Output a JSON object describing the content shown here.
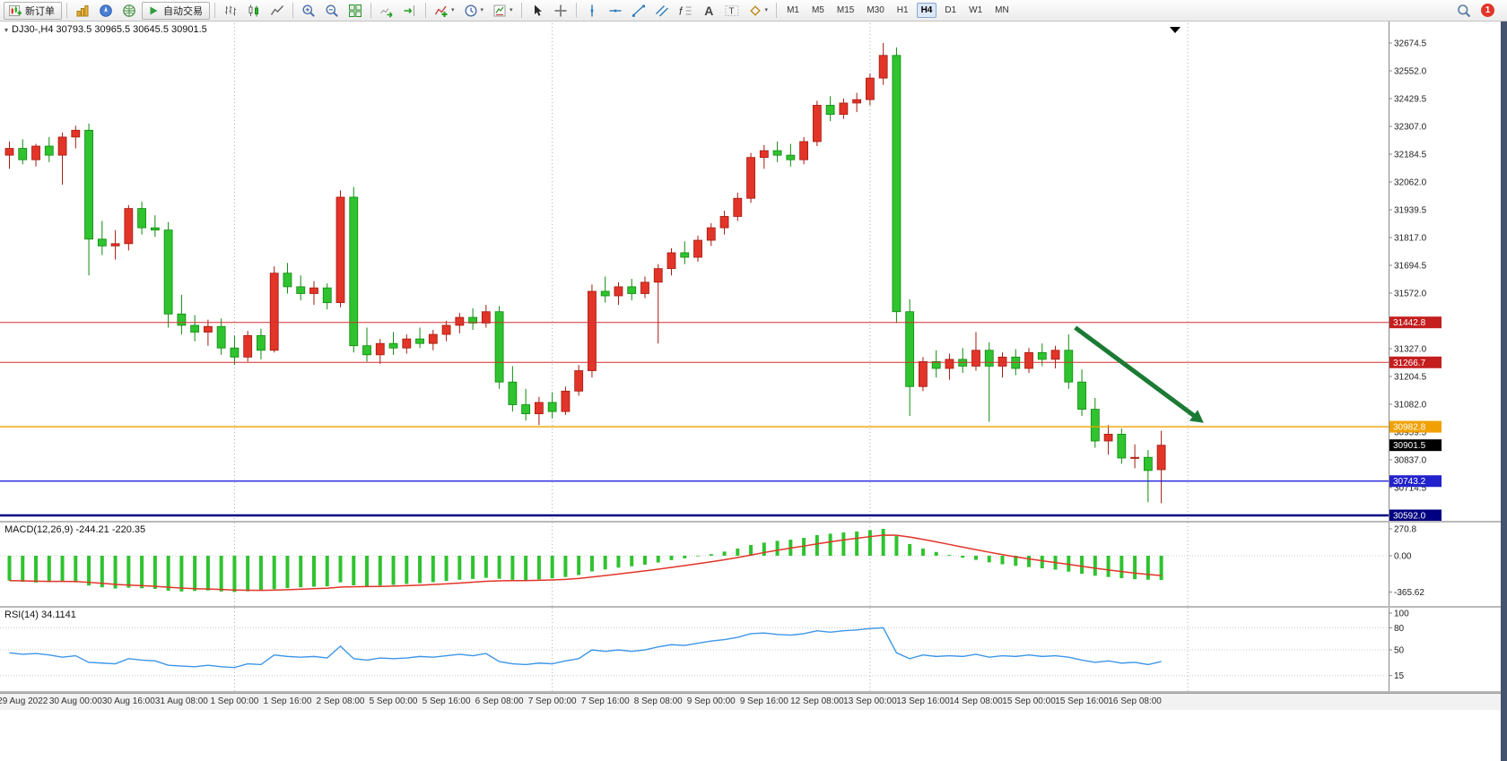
{
  "toolbar": {
    "groups": [
      {
        "items": [
          {
            "name": "new-order-button",
            "icon": "new-order-icon",
            "label": "新订单",
            "framed": true
          }
        ]
      },
      {
        "items": [
          {
            "name": "market-watch-button",
            "icon": "market-watch-icon"
          },
          {
            "name": "navigator-button",
            "icon": "navigator-icon"
          },
          {
            "name": "terminal-button",
            "icon": "terminal-icon"
          },
          {
            "name": "autotrading-button",
            "icon": "autotrading-icon",
            "label": "自动交易",
            "framed": true
          }
        ]
      },
      {
        "items": [
          {
            "name": "bar-chart-button",
            "icon": "bar-chart-icon"
          },
          {
            "name": "candlestick-chart-button",
            "icon": "candlestick-icon"
          },
          {
            "name": "line-chart-button",
            "icon": "line-chart-icon"
          }
        ]
      },
      {
        "items": [
          {
            "name": "zoom-in-button",
            "icon": "zoom-in-icon"
          },
          {
            "name": "zoom-out-button",
            "icon": "zoom-out-icon"
          },
          {
            "name": "tile-windows-button",
            "icon": "tile-windows-icon"
          }
        ]
      },
      {
        "items": [
          {
            "name": "auto-scroll-button",
            "icon": "auto-scroll-icon"
          },
          {
            "name": "chart-shift-button",
            "icon": "chart-shift-icon"
          }
        ]
      },
      {
        "items": [
          {
            "name": "indicators-button",
            "icon": "indicators-icon",
            "caret": true
          },
          {
            "name": "periods-button",
            "icon": "clock-icon",
            "caret": true
          },
          {
            "name": "templates-button",
            "icon": "template-icon",
            "caret": true
          }
        ]
      },
      {
        "items": [
          {
            "name": "cursor-button",
            "icon": "cursor-icon"
          },
          {
            "name": "crosshair-button",
            "icon": "crosshair-icon"
          }
        ]
      },
      {
        "items": [
          {
            "name": "vertical-line-button",
            "icon": "vertical-line-icon"
          },
          {
            "name": "horizontal-line-button",
            "icon": "horizontal-line-icon"
          },
          {
            "name": "trendline-button",
            "icon": "trendline-icon"
          },
          {
            "name": "channel-button",
            "icon": "channel-icon"
          },
          {
            "name": "fibonacci-button",
            "icon": "fibonacci-icon"
          },
          {
            "name": "text-button",
            "icon": "text-icon"
          },
          {
            "name": "label-button",
            "icon": "label-icon"
          },
          {
            "name": "shapes-button",
            "icon": "shapes-icon",
            "caret": true
          }
        ]
      }
    ],
    "timeframes": [
      "M1",
      "M5",
      "M15",
      "M30",
      "H1",
      "H4",
      "D1",
      "W1",
      "MN"
    ],
    "active_timeframe": "H4",
    "notification_badge": "1"
  },
  "chart": {
    "header": "DJ30-,H4 30793.5 30965.5 30645.5 30901.5",
    "symbol": "DJ30-",
    "timeframe": "H4",
    "open": 30793.5,
    "high": 30965.5,
    "low": 30645.5,
    "close": 30901.5
  },
  "chart_data": [
    {
      "type": "candlestick",
      "title": "DJ30-,H4",
      "up_color": "#e23428",
      "up_stroke": "#a31b10",
      "down_color": "#2fc32f",
      "down_stroke": "#0e8a0e",
      "y_range": {
        "top": 32674.5,
        "bottom": 30592.0
      },
      "y_tick_labels": [
        32674.5,
        32552.0,
        32429.5,
        32307.0,
        32184.5,
        32062.0,
        31939.5,
        31817.0,
        31694.5,
        31572.0,
        31449.5,
        31327.0,
        31204.5,
        31082.0,
        30959.5,
        30837.0,
        30714.5,
        30592.0
      ],
      "x_labels": [
        "29 Aug 2022",
        "30 Aug 00:00",
        "30 Aug 16:00",
        "31 Aug 08:00",
        "1 Sep 00:00",
        "1 Sep 16:00",
        "2 Sep 08:00",
        "5 Sep 00:00",
        "5 Sep 16:00",
        "6 Sep 08:00",
        "7 Sep 00:00",
        "7 Sep 16:00",
        "8 Sep 08:00",
        "9 Sep 00:00",
        "9 Sep 16:00",
        "12 Sep 08:00",
        "13 Sep 00:00",
        "13 Sep 16:00",
        "14 Sep 08:00",
        "15 Sep 00:00",
        "15 Sep 16:00",
        "16 Sep 08:00"
      ],
      "x_label_indices": [
        1,
        5,
        9,
        13,
        17,
        21,
        25,
        29,
        33,
        37,
        41,
        45,
        49,
        53,
        57,
        61,
        65,
        69,
        73,
        77,
        81,
        85
      ],
      "separators": [
        17,
        41,
        65,
        89
      ],
      "candles": [
        [
          32180,
          32240,
          32120,
          32210
        ],
        [
          32210,
          32250,
          32140,
          32160
        ],
        [
          32160,
          32230,
          32130,
          32220
        ],
        [
          32220,
          32260,
          32150,
          32180
        ],
        [
          32180,
          32280,
          32050,
          32260
        ],
        [
          32260,
          32310,
          32210,
          32290
        ],
        [
          32290,
          32320,
          31650,
          31810
        ],
        [
          31810,
          31890,
          31740,
          31780
        ],
        [
          31780,
          31850,
          31720,
          31790
        ],
        [
          31790,
          31960,
          31760,
          31945
        ],
        [
          31945,
          31975,
          31830,
          31860
        ],
        [
          31860,
          31915,
          31820,
          31850
        ],
        [
          31850,
          31885,
          31420,
          31480
        ],
        [
          31480,
          31565,
          31390,
          31430
        ],
        [
          31430,
          31475,
          31360,
          31400
        ],
        [
          31400,
          31455,
          31340,
          31425
        ],
        [
          31425,
          31460,
          31300,
          31330
        ],
        [
          31330,
          31385,
          31255,
          31290
        ],
        [
          31290,
          31405,
          31270,
          31385
        ],
        [
          31385,
          31415,
          31280,
          31320
        ],
        [
          31320,
          31690,
          31310,
          31660
        ],
        [
          31660,
          31705,
          31570,
          31600
        ],
        [
          31600,
          31650,
          31540,
          31570
        ],
        [
          31570,
          31625,
          31520,
          31595
        ],
        [
          31595,
          31615,
          31500,
          31530
        ],
        [
          31530,
          32025,
          31510,
          31995
        ],
        [
          31995,
          32040,
          31310,
          31340
        ],
        [
          31340,
          31420,
          31270,
          31300
        ],
        [
          31300,
          31370,
          31260,
          31350
        ],
        [
          31350,
          31400,
          31300,
          31330
        ],
        [
          31330,
          31390,
          31305,
          31370
        ],
        [
          31370,
          31420,
          31330,
          31350
        ],
        [
          31350,
          31410,
          31320,
          31390
        ],
        [
          31390,
          31450,
          31360,
          31430
        ],
        [
          31430,
          31485,
          31395,
          31465
        ],
        [
          31465,
          31505,
          31410,
          31440
        ],
        [
          31440,
          31520,
          31420,
          31490
        ],
        [
          31490,
          31515,
          31150,
          31180
        ],
        [
          31180,
          31250,
          31050,
          31080
        ],
        [
          31080,
          31150,
          31010,
          31040
        ],
        [
          31040,
          31115,
          30990,
          31090
        ],
        [
          31090,
          31135,
          31020,
          31050
        ],
        [
          31050,
          31160,
          31035,
          31140
        ],
        [
          31140,
          31255,
          31120,
          31230
        ],
        [
          31230,
          31610,
          31200,
          31580
        ],
        [
          31580,
          31645,
          31530,
          31560
        ],
        [
          31560,
          31620,
          31520,
          31600
        ],
        [
          31600,
          31635,
          31540,
          31570
        ],
        [
          31570,
          31645,
          31550,
          31620
        ],
        [
          31620,
          31700,
          31350,
          31680
        ],
        [
          31680,
          31770,
          31650,
          31750
        ],
        [
          31750,
          31800,
          31700,
          31730
        ],
        [
          31730,
          31825,
          31710,
          31805
        ],
        [
          31805,
          31880,
          31780,
          31860
        ],
        [
          31860,
          31935,
          31830,
          31910
        ],
        [
          31910,
          32015,
          31890,
          31990
        ],
        [
          31990,
          32190,
          31970,
          32170
        ],
        [
          32170,
          32225,
          32120,
          32200
        ],
        [
          32200,
          32240,
          32150,
          32180
        ],
        [
          32180,
          32230,
          32130,
          32160
        ],
        [
          32160,
          32260,
          32140,
          32240
        ],
        [
          32240,
          32420,
          32220,
          32400
        ],
        [
          32400,
          32440,
          32330,
          32360
        ],
        [
          32360,
          32430,
          32340,
          32410
        ],
        [
          32410,
          32455,
          32370,
          32425
        ],
        [
          32425,
          32540,
          32400,
          32520
        ],
        [
          32520,
          32674.5,
          32490,
          32620
        ],
        [
          32620,
          32655,
          31440,
          31490
        ],
        [
          31490,
          31545,
          31030,
          31160
        ],
        [
          31160,
          31290,
          31140,
          31270
        ],
        [
          31270,
          31320,
          31200,
          31240
        ],
        [
          31240,
          31305,
          31190,
          31280
        ],
        [
          31280,
          31330,
          31220,
          31250
        ],
        [
          31250,
          31400,
          31230,
          31320
        ],
        [
          31320,
          31355,
          31005,
          31250
        ],
        [
          31250,
          31310,
          31200,
          31290
        ],
        [
          31290,
          31325,
          31210,
          31240
        ],
        [
          31240,
          31330,
          31220,
          31310
        ],
        [
          31310,
          31350,
          31250,
          31280
        ],
        [
          31280,
          31340,
          31240,
          31320
        ],
        [
          31320,
          31390,
          31150,
          31180
        ],
        [
          31180,
          31235,
          31030,
          31060
        ],
        [
          31060,
          31110,
          30890,
          30920
        ],
        [
          30920,
          30990,
          30860,
          30950
        ],
        [
          30950,
          30975,
          30820,
          30845
        ],
        [
          30845,
          30905,
          30800,
          30848
        ],
        [
          30848,
          30880,
          30650,
          30790
        ],
        [
          30793.5,
          30965.5,
          30645.5,
          30901.5
        ]
      ],
      "hlines": [
        {
          "price": 31442.8,
          "color": "#d32f2f",
          "tag_bg": "#c41e1e",
          "width": 1
        },
        {
          "price": 31266.7,
          "color": "#d32f2f",
          "tag_bg": "#c41e1e",
          "width": 1
        },
        {
          "price": 30982.8,
          "color": "#f0a100",
          "tag_bg": "#f0a100",
          "width": 1.4
        },
        {
          "price": 30743.2,
          "color": "#2222dd",
          "tag_bg": "#2222cc",
          "width": 1.4
        },
        {
          "price": 30592.0,
          "color": "#000080",
          "tag_bg": "#000080",
          "width": 2.5
        }
      ],
      "current_price": 30901.5,
      "current_price_tag_bg": "#000000",
      "arrow_annotation": {
        "from_index": 80.5,
        "from_price": 31420,
        "to_index": 90.2,
        "to_price": 31000,
        "color": "#1b7a33"
      }
    },
    {
      "type": "macd-histogram",
      "label": "MACD(12,26,9) -244.21 -220.35",
      "histogram_color": "#2fc32f",
      "signal_color": "#e23428",
      "signal_ema_period": 9,
      "scale": [
        {
          "label": "270.8",
          "value": 270.8
        },
        {
          "label": "0.00",
          "value": 0
        },
        {
          "label": "-365.62",
          "value": -365.62
        }
      ],
      "values": [
        -250,
        -262,
        -270,
        -266,
        -258,
        -268,
        -300,
        -318,
        -330,
        -322,
        -328,
        -334,
        -352,
        -360,
        -355,
        -350,
        -360,
        -365.62,
        -358,
        -352,
        -336,
        -326,
        -318,
        -312,
        -308,
        -268,
        -298,
        -306,
        -300,
        -294,
        -284,
        -276,
        -266,
        -254,
        -242,
        -234,
        -222,
        -232,
        -242,
        -248,
        -238,
        -228,
        -214,
        -194,
        -158,
        -138,
        -120,
        -106,
        -90,
        -68,
        -44,
        -26,
        -6,
        16,
        42,
        72,
        108,
        132,
        150,
        162,
        180,
        208,
        222,
        234,
        244,
        258,
        270.8,
        198,
        118,
        72,
        38,
        8,
        -20,
        -42,
        -66,
        -86,
        -102,
        -114,
        -126,
        -140,
        -160,
        -182,
        -202,
        -214,
        -226,
        -236,
        -242,
        -244.21
      ]
    },
    {
      "type": "line",
      "label": "RSI(14) 34.1141",
      "line_color": "#3d96e8",
      "levels": [
        80,
        50,
        15
      ],
      "scale": [
        {
          "label": "100",
          "value": 100
        },
        {
          "label": "80",
          "value": 80
        },
        {
          "label": "50",
          "value": 50
        },
        {
          "label": "15",
          "value": 15
        }
      ],
      "values": [
        46,
        44,
        45,
        43,
        40,
        42,
        33,
        32,
        31,
        38,
        36,
        35,
        29,
        28,
        27,
        29,
        27,
        26,
        31,
        30,
        43,
        41,
        40,
        41,
        39,
        55,
        38,
        36,
        39,
        38,
        39,
        41,
        40,
        42,
        44,
        42,
        45,
        34,
        31,
        30,
        32,
        31,
        35,
        38,
        50,
        48,
        50,
        48,
        50,
        54,
        57,
        56,
        59,
        62,
        64,
        67,
        72,
        73,
        71,
        70,
        72,
        76,
        74,
        76,
        77,
        79,
        80,
        46,
        38,
        43,
        41,
        42,
        41,
        44,
        40,
        42,
        41,
        43,
        41,
        42,
        40,
        36,
        33,
        35,
        32,
        33,
        30,
        34.11
      ]
    }
  ]
}
